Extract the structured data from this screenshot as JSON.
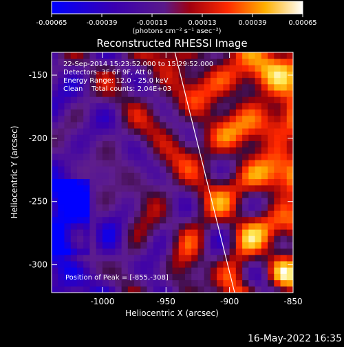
{
  "chart_data": {
    "type": "heatmap",
    "title": "Reconstructed RHESSI Image",
    "xlabel": "Heliocentric X (arcsec)",
    "ylabel": "Heliocentric Y (arcsec)",
    "xlim": [
      -1040,
      -850
    ],
    "ylim": [
      -322,
      -132
    ],
    "x_ticks": [
      -1000,
      -950,
      -900,
      -850
    ],
    "x_tick_labels": [
      "-1000",
      "-950",
      "-900",
      "-850"
    ],
    "y_ticks": [
      -300,
      -250,
      -200,
      -150
    ],
    "y_tick_labels": [
      "-300",
      "-250",
      "-200",
      "-150"
    ],
    "colorbar": {
      "range": [
        -0.00065,
        0.00065
      ],
      "tick_values": [
        -0.00065,
        -0.00039,
        -0.00013,
        0.00013,
        0.00039,
        0.00065
      ],
      "tick_labels": [
        "-0.00065",
        "-0.00039",
        "-0.00013",
        "0.00013",
        "0.00039",
        "0.00065"
      ],
      "unit": "(photons cm⁻² s⁻¹ asec⁻²)"
    },
    "annotations": [
      "22-Sep-2014 15:23:52.000 to 15:29:52.000",
      "Detectors: 3F 6F 9F, Att 0",
      "Energy Range: 12.0 - 25.0 keV",
      "Clean    Total counts: 2.04E+03"
    ],
    "peak_label": "Position of Peak = [-855,-308]",
    "peak": [
      -855,
      -308
    ],
    "limb_line": [
      [
        -943,
        -132
      ],
      [
        -896,
        -322
      ]
    ]
  },
  "footer": {
    "timestamp": "16-May-2022 16:35"
  }
}
